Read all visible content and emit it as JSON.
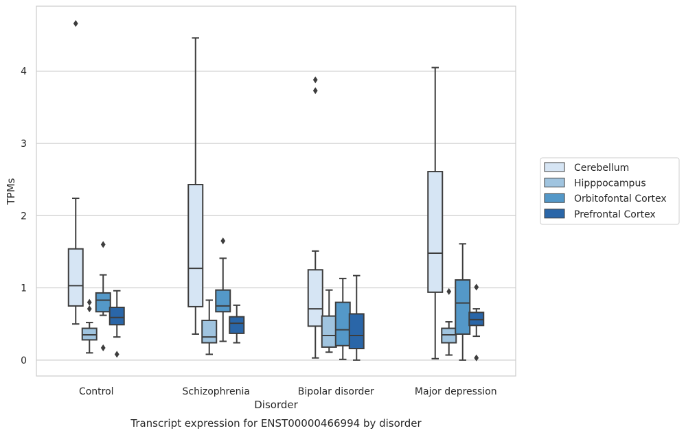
{
  "chart_data": {
    "type": "box",
    "title": "Transcript expression for ENST00000466994 by disorder",
    "xlabel": "Disorder",
    "ylabel": "TPMs",
    "ylim": [
      -0.22,
      4.9
    ],
    "yticks": [
      0,
      1,
      2,
      3,
      4
    ],
    "grid": "horizontal",
    "legend_position": "right",
    "categories": [
      "Control",
      "Schizophrenia",
      "Bipolar disorder",
      "Major depression"
    ],
    "series": [
      {
        "name": "Cerebellum",
        "color": "#d6e5f4",
        "boxes": [
          {
            "whislo": 0.5,
            "q1": 0.75,
            "med": 1.03,
            "q3": 1.54,
            "whishi": 2.24,
            "fliers": [
              4.66
            ]
          },
          {
            "whislo": 0.36,
            "q1": 0.74,
            "med": 1.27,
            "q3": 2.43,
            "whishi": 4.46,
            "fliers": []
          },
          {
            "whislo": 0.03,
            "q1": 0.47,
            "med": 0.71,
            "q3": 1.25,
            "whishi": 1.51,
            "fliers": [
              3.73,
              3.88
            ]
          },
          {
            "whislo": 0.02,
            "q1": 0.94,
            "med": 1.48,
            "q3": 2.61,
            "whishi": 4.05,
            "fliers": []
          }
        ]
      },
      {
        "name": "Hipppocampus",
        "color": "#a0c4df",
        "boxes": [
          {
            "whislo": 0.1,
            "q1": 0.28,
            "med": 0.35,
            "q3": 0.44,
            "whishi": 0.52,
            "fliers": [
              0.71,
              0.8
            ]
          },
          {
            "whislo": 0.08,
            "q1": 0.24,
            "med": 0.32,
            "q3": 0.55,
            "whishi": 0.83,
            "fliers": []
          },
          {
            "whislo": 0.11,
            "q1": 0.18,
            "med": 0.34,
            "q3": 0.61,
            "whishi": 0.97,
            "fliers": []
          },
          {
            "whislo": 0.07,
            "q1": 0.24,
            "med": 0.35,
            "q3": 0.44,
            "whishi": 0.53,
            "fliers": [
              0.95
            ]
          }
        ]
      },
      {
        "name": "Orbitofontal Cortex",
        "color": "#5498c8",
        "boxes": [
          {
            "whislo": 0.62,
            "q1": 0.67,
            "med": 0.83,
            "q3": 0.93,
            "whishi": 1.18,
            "fliers": [
              0.17,
              1.6
            ]
          },
          {
            "whislo": 0.26,
            "q1": 0.67,
            "med": 0.75,
            "q3": 0.97,
            "whishi": 1.41,
            "fliers": [
              1.65
            ]
          },
          {
            "whislo": 0.01,
            "q1": 0.2,
            "med": 0.42,
            "q3": 0.8,
            "whishi": 1.13,
            "fliers": []
          },
          {
            "whislo": 0.0,
            "q1": 0.36,
            "med": 0.79,
            "q3": 1.11,
            "whishi": 1.61,
            "fliers": []
          }
        ]
      },
      {
        "name": "Prefrontal Cortex",
        "color": "#2a66a8",
        "boxes": [
          {
            "whislo": 0.32,
            "q1": 0.49,
            "med": 0.59,
            "q3": 0.73,
            "whishi": 0.96,
            "fliers": [
              0.08
            ]
          },
          {
            "whislo": 0.24,
            "q1": 0.37,
            "med": 0.51,
            "q3": 0.6,
            "whishi": 0.76,
            "fliers": []
          },
          {
            "whislo": 0.0,
            "q1": 0.16,
            "med": 0.34,
            "q3": 0.64,
            "whishi": 1.17,
            "fliers": []
          },
          {
            "whislo": 0.33,
            "q1": 0.48,
            "med": 0.56,
            "q3": 0.66,
            "whishi": 0.71,
            "fliers": [
              0.03,
              1.01
            ]
          }
        ]
      }
    ]
  }
}
